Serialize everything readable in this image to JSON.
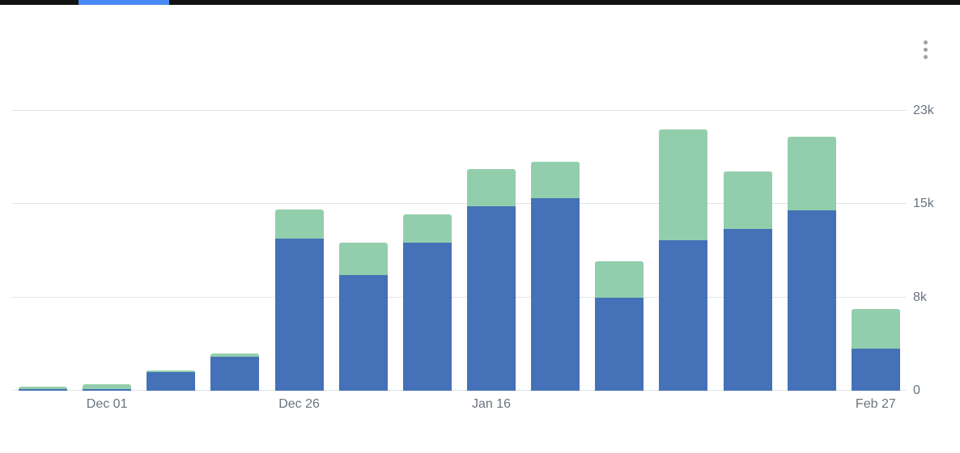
{
  "window": {
    "top_strip_color": "#121212",
    "tab_highlight_color": "#4a8af4"
  },
  "menu": {
    "kebab_icon": "vertical-three-dots"
  },
  "chart_data": {
    "type": "bar",
    "stacked": true,
    "title": "",
    "xlabel": "",
    "ylabel": "",
    "grid": "horizontal",
    "legend": "none",
    "ylim": [
      0,
      22500
    ],
    "categories": [
      "",
      "Dec 01",
      "",
      "",
      "Dec 26",
      "",
      "",
      "Jan 16",
      "",
      "",
      "",
      "",
      "",
      "Feb 27"
    ],
    "series": [
      {
        "name": "blue",
        "color": "#4471b7",
        "values": [
          100,
          150,
          1500,
          2700,
          12200,
          9300,
          11900,
          14800,
          15500,
          7500,
          12100,
          13000,
          14500,
          3400
        ]
      },
      {
        "name": "green",
        "color": "#93ceac",
        "values": [
          250,
          350,
          100,
          300,
          2400,
          2600,
          2300,
          3000,
          2900,
          2900,
          8900,
          4600,
          5900,
          3200
        ]
      }
    ],
    "y_ticks": [
      {
        "value": 0,
        "label": "0"
      },
      {
        "value": 7500,
        "label": "8k"
      },
      {
        "value": 15000,
        "label": "15k"
      },
      {
        "value": 22500,
        "label": "23k"
      }
    ]
  }
}
